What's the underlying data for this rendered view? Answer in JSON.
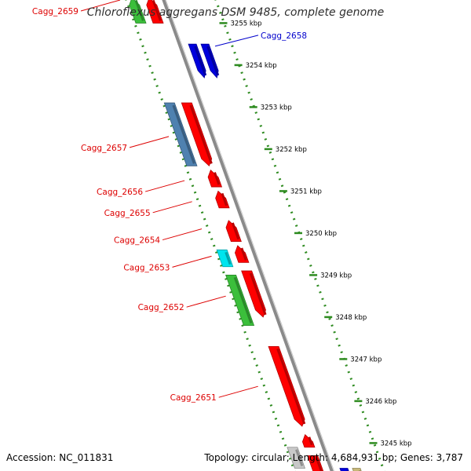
{
  "header": {
    "title": "Chloroflexus aggregans DSM 9485, complete genome"
  },
  "footer": {
    "accession": "Accession: NC_011831",
    "summary": "Topology: circular; Length: 4,684,931 bp; Genes: 3,787"
  },
  "colors": {
    "forward": "#ff0000",
    "reverse": "#0000dd",
    "steel": "#4f81b0",
    "cyan": "#00e5ee",
    "green": "#3bbf3b",
    "gray": "#c8c8c8",
    "olive": "#c8b878",
    "backbone": "#8a8a8a",
    "grid": "#2e8b20",
    "label_red": "#dd0000",
    "label_blue": "#0000cc"
  },
  "chart_data": {
    "type": "genome-map",
    "unit": "kbp",
    "ticks": [
      {
        "kbp": 3255,
        "label": "3255 kbp"
      },
      {
        "kbp": 3254,
        "label": "3254 kbp"
      },
      {
        "kbp": 3253,
        "label": "3253 kbp"
      },
      {
        "kbp": 3252,
        "label": "3252 kbp"
      },
      {
        "kbp": 3251,
        "label": "3251 kbp"
      },
      {
        "kbp": 3250,
        "label": "3250 kbp"
      },
      {
        "kbp": 3249,
        "label": "3249 kbp"
      },
      {
        "kbp": 3248,
        "label": "3248 kbp"
      },
      {
        "kbp": 3247,
        "label": "3247 kbp"
      },
      {
        "kbp": 3246,
        "label": "3246 kbp"
      },
      {
        "kbp": 3245,
        "label": "3245 kbp"
      }
    ],
    "features": [
      {
        "start": 3255.0,
        "end": 3255.6,
        "track": "fwd",
        "color": "forward",
        "dir": "up"
      },
      {
        "start": 3255.0,
        "end": 3255.6,
        "track": "rev",
        "color": "green",
        "dir": "up"
      },
      {
        "start": 3253.7,
        "end": 3254.5,
        "track": "out",
        "color": "reverse",
        "dir": "down"
      },
      {
        "start": 3253.7,
        "end": 3254.5,
        "track": "out2",
        "color": "reverse",
        "dir": "down"
      },
      {
        "start": 3251.6,
        "end": 3253.1,
        "track": "fwd",
        "color": "forward",
        "dir": "down"
      },
      {
        "start": 3251.6,
        "end": 3253.1,
        "track": "rev",
        "color": "steel",
        "dir": "none"
      },
      {
        "start": 3251.1,
        "end": 3251.5,
        "track": "fwd",
        "color": "forward",
        "dir": "up"
      },
      {
        "start": 3250.6,
        "end": 3251.0,
        "track": "fwd",
        "color": "forward",
        "dir": "up"
      },
      {
        "start": 3249.8,
        "end": 3250.3,
        "track": "fwd",
        "color": "forward",
        "dir": "up"
      },
      {
        "start": 3249.3,
        "end": 3249.7,
        "track": "fwd",
        "color": "forward",
        "dir": "up"
      },
      {
        "start": 3249.2,
        "end": 3249.6,
        "track": "rev",
        "color": "cyan",
        "dir": "none"
      },
      {
        "start": 3248.0,
        "end": 3249.1,
        "track": "fwd",
        "color": "forward",
        "dir": "down"
      },
      {
        "start": 3247.8,
        "end": 3249.0,
        "track": "rev",
        "color": "green",
        "dir": "none"
      },
      {
        "start": 3245.4,
        "end": 3247.3,
        "track": "fwd",
        "color": "forward",
        "dir": "down"
      },
      {
        "start": 3244.9,
        "end": 3245.2,
        "track": "fwd",
        "color": "forward",
        "dir": "up"
      },
      {
        "start": 3244.4,
        "end": 3244.9,
        "track": "rev",
        "color": "gray",
        "dir": "none"
      },
      {
        "start": 3244.1,
        "end": 3244.7,
        "track": "fwd",
        "color": "forward",
        "dir": "none"
      },
      {
        "start": 3244.0,
        "end": 3244.4,
        "track": "out",
        "color": "reverse",
        "dir": "none"
      },
      {
        "start": 3244.0,
        "end": 3244.4,
        "track": "out2",
        "color": "olive",
        "dir": "none"
      }
    ],
    "gene_labels": [
      {
        "text": "Cagg_2659",
        "kbp": 3255.55,
        "side": "left",
        "color": "label_red"
      },
      {
        "text": "Cagg_2658",
        "kbp": 3254.45,
        "side": "right",
        "color": "label_blue"
      },
      {
        "text": "Cagg_2657",
        "kbp": 3252.3,
        "side": "left",
        "color": "label_red"
      },
      {
        "text": "Cagg_2656",
        "kbp": 3251.25,
        "side": "left",
        "color": "label_red"
      },
      {
        "text": "Cagg_2655",
        "kbp": 3250.75,
        "side": "left",
        "color": "label_red"
      },
      {
        "text": "Cagg_2654",
        "kbp": 3250.1,
        "side": "left",
        "color": "label_red"
      },
      {
        "text": "Cagg_2653",
        "kbp": 3249.45,
        "side": "left",
        "color": "label_red"
      },
      {
        "text": "Cagg_2652",
        "kbp": 3248.5,
        "side": "left",
        "color": "label_red"
      },
      {
        "text": "Cagg_2651",
        "kbp": 3246.35,
        "side": "left",
        "color": "label_red"
      }
    ]
  }
}
